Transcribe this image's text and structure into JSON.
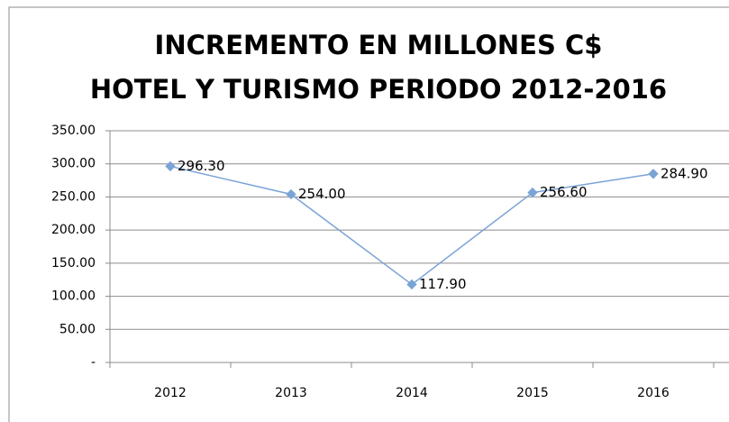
{
  "chart_data": {
    "type": "line",
    "title": [
      "INCREMENTO EN MILLONES C$",
      "HOTEL Y TURISMO PERIODO 2012-2016"
    ],
    "categories": [
      "2012",
      "2013",
      "2014",
      "2015",
      "2016"
    ],
    "values": [
      296.3,
      254.0,
      117.9,
      256.6,
      284.9
    ],
    "value_labels": [
      "296.30",
      "254.00",
      "117.90",
      "256.60",
      "284.90"
    ],
    "color": "#7aa3d6",
    "ylim": [
      0,
      350
    ],
    "yticks": [
      {
        "value": 0,
        "label": "-"
      },
      {
        "value": 50,
        "label": "50.00"
      },
      {
        "value": 100,
        "label": "100.00"
      },
      {
        "value": 150,
        "label": "150.00"
      },
      {
        "value": 200,
        "label": "200.00"
      },
      {
        "value": 250,
        "label": "250.00"
      },
      {
        "value": 300,
        "label": "300.00"
      },
      {
        "value": 350,
        "label": "350.00"
      }
    ],
    "grid": true
  }
}
